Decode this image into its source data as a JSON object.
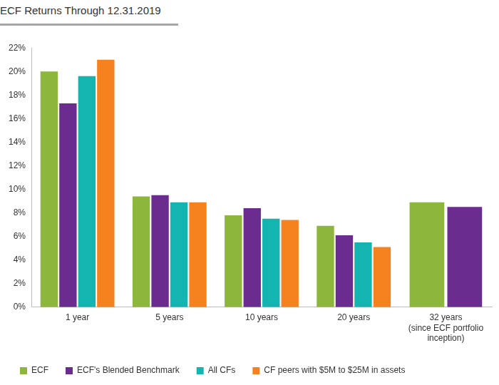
{
  "chart_data": {
    "type": "bar",
    "title": "ECF Returns Through 12.31.2019",
    "categories": [
      "1 year",
      "5 years",
      "10 years",
      "20 years",
      "32 years (since ECF portfolio inception)"
    ],
    "series": [
      {
        "name": "ECF",
        "color": "#8cb63c",
        "values": [
          20.0,
          9.4,
          7.8,
          6.9,
          8.9
        ]
      },
      {
        "name": "ECF's Blended Benchmark",
        "color": "#6a2c8e",
        "values": [
          17.3,
          9.5,
          8.4,
          6.1,
          8.5
        ]
      },
      {
        "name": "All CFs",
        "color": "#14b4b0",
        "values": [
          19.6,
          8.9,
          7.5,
          5.5,
          null
        ]
      },
      {
        "name": "CF peers with $5M to $25M in assets",
        "color": "#f5821f",
        "values": [
          21.0,
          8.9,
          7.4,
          5.1,
          null
        ]
      }
    ],
    "ylim": [
      0,
      22
    ],
    "yticks": [
      {
        "value": 0,
        "label": "0%"
      },
      {
        "value": 2,
        "label": "2%"
      },
      {
        "value": 4,
        "label": "4%"
      },
      {
        "value": 6,
        "label": "6%"
      },
      {
        "value": 8,
        "label": "8%"
      },
      {
        "value": 10,
        "label": "10%"
      },
      {
        "value": 12,
        "label": "12%"
      },
      {
        "value": 14,
        "label": "14%"
      },
      {
        "value": 16,
        "label": "16%"
      },
      {
        "value": 18,
        "label": "18%"
      },
      {
        "value": 20,
        "label": "20%"
      },
      {
        "value": 22,
        "label": "22%"
      }
    ],
    "grid": false,
    "legend": "bottom"
  }
}
